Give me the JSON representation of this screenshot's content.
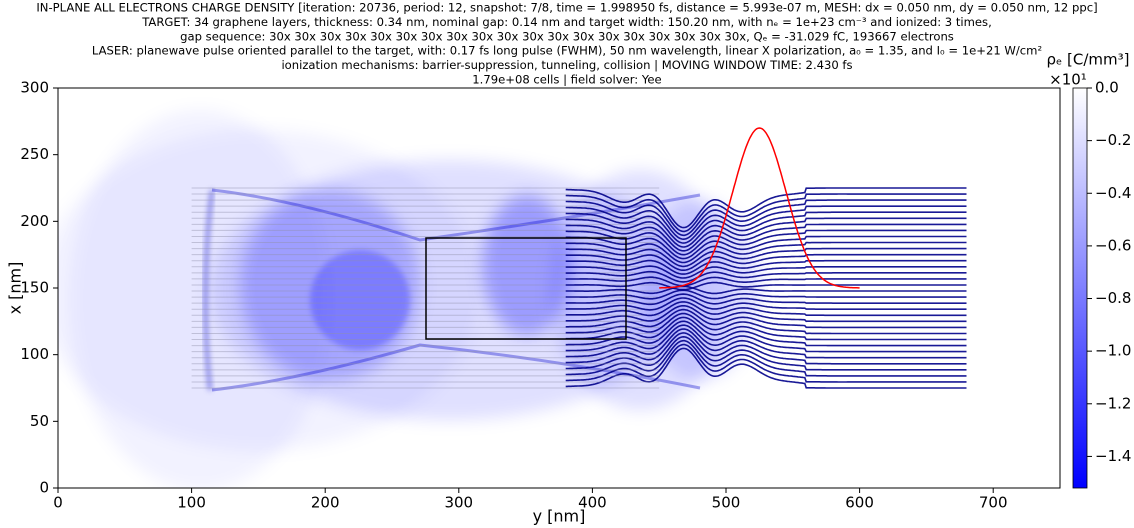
{
  "chart_data": {
    "type": "heatmap",
    "title_lines": [
      "IN-PLANE ALL ELECTRONS CHARGE DENSITY [iteration: 20736, period: 12, snapshot: 7/8, time = 1.998950 fs, distance = 5.993e-07 m, MESH: dx = 0.050 nm, dy = 0.050 nm, 12 ppc]",
      "TARGET: 34 graphene layers, thickness: 0.34 nm, nominal gap: 0.14 nm and target width: 150.20  nm, with nₑ = 1e+23 cm⁻³ and ionized: 3 times,",
      "gap sequence: 30x 30x 30x 30x 30x 30x 30x 30x 30x 30x 30x 30x 30x 30x 30x 30x 30x 30x 30x, Qₑ = -31.029 fC, 193667 electrons",
      "LASER: planewave pulse oriented parallel to the target, with: 0.17 fs long pulse (FWHM), 50 nm wavelength, linear X polarization, a₀ = 1.35, and I₀ = 1e+21 W/cm²",
      "ionization mechanisms: barrier-suppression, tunneling, collision | MOVING WINDOW TIME: 2.430 fs",
      "1.79e+08 cells | field solver: Yee"
    ],
    "xlabel": "y [nm]",
    "ylabel": "x [nm]",
    "xlim": [
      0,
      750
    ],
    "ylim": [
      0,
      300
    ],
    "xticks": [
      0,
      100,
      200,
      300,
      400,
      500,
      600,
      700
    ],
    "yticks": [
      0,
      50,
      100,
      150,
      200,
      250,
      300
    ],
    "colorbar": {
      "label": "ρₑ [C/mm³]",
      "scale_label": "×10¹",
      "lim": [
        -1.52,
        0
      ],
      "colors": [
        "#0000ff",
        "#ffffff"
      ],
      "ticks": [
        {
          "value": 0,
          "label": "0.0"
        },
        {
          "value": -0.2,
          "label": "−0.2"
        },
        {
          "value": -0.4,
          "label": "−0.4"
        },
        {
          "value": -0.6,
          "label": "−0.6"
        },
        {
          "value": -0.8,
          "label": "−0.8"
        },
        {
          "value": -1.0,
          "label": "−1.0"
        },
        {
          "value": -1.2,
          "label": "−1.2"
        },
        {
          "value": -1.4,
          "label": "−1.4"
        }
      ]
    }
  }
}
